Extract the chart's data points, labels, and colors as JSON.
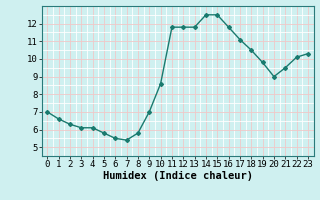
{
  "x": [
    0,
    1,
    2,
    3,
    4,
    5,
    6,
    7,
    8,
    9,
    10,
    11,
    12,
    13,
    14,
    15,
    16,
    17,
    18,
    19,
    20,
    21,
    22,
    23
  ],
  "y": [
    7.0,
    6.6,
    6.3,
    6.1,
    6.1,
    5.8,
    5.5,
    5.4,
    5.8,
    7.0,
    8.6,
    11.8,
    11.8,
    11.8,
    12.5,
    12.5,
    11.8,
    11.1,
    10.5,
    9.8,
    9.0,
    9.5,
    10.1,
    10.3
  ],
  "line_color": "#1a7a6e",
  "marker": "D",
  "marker_size": 2.0,
  "bg_color": "#cff0f0",
  "grid_major_color": "#f0c8c8",
  "grid_minor_color": "#ffffff",
  "xlabel": "Humidex (Indice chaleur)",
  "xlim": [
    -0.5,
    23.5
  ],
  "ylim": [
    4.5,
    13.0
  ],
  "yticks": [
    5,
    6,
    7,
    8,
    9,
    10,
    11,
    12
  ],
  "xticks": [
    0,
    1,
    2,
    3,
    4,
    5,
    6,
    7,
    8,
    9,
    10,
    11,
    12,
    13,
    14,
    15,
    16,
    17,
    18,
    19,
    20,
    21,
    22,
    23
  ],
  "tick_fontsize": 6.5,
  "xlabel_fontsize": 7.5
}
